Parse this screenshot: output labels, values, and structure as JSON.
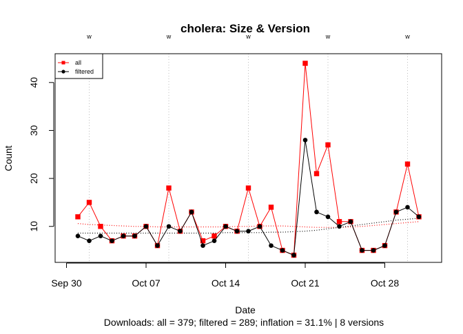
{
  "chart_data": {
    "type": "line",
    "title": "cholera: Size & Version",
    "xlabel": "Date",
    "ylabel": "Count",
    "footer": "Downloads: all = 379; filtered = 289; inflation = 31.1% | 8 versions",
    "x_start_date": "2020-09-30",
    "x_range": [
      "2020-09-29",
      "2020-11-02"
    ],
    "ylim": [
      2.5,
      46
    ],
    "x_ticks": [
      {
        "label": "Sep 30",
        "date": "2020-09-30"
      },
      {
        "label": "Oct 07",
        "date": "2020-10-07"
      },
      {
        "label": "Oct 14",
        "date": "2020-10-14"
      },
      {
        "label": "Oct 21",
        "date": "2020-10-21"
      },
      {
        "label": "Oct 28",
        "date": "2020-10-28"
      }
    ],
    "y_ticks": [
      10,
      20,
      30,
      40
    ],
    "version_marks": {
      "label": "w",
      "dates": [
        "2020-10-02",
        "2020-10-09",
        "2020-10-16",
        "2020-10-23",
        "2020-10-30"
      ]
    },
    "x": [
      "2020-10-01",
      "2020-10-02",
      "2020-10-03",
      "2020-10-04",
      "2020-10-05",
      "2020-10-06",
      "2020-10-07",
      "2020-10-08",
      "2020-10-09",
      "2020-10-10",
      "2020-10-11",
      "2020-10-12",
      "2020-10-13",
      "2020-10-14",
      "2020-10-15",
      "2020-10-16",
      "2020-10-17",
      "2020-10-18",
      "2020-10-19",
      "2020-10-20",
      "2020-10-21",
      "2020-10-22",
      "2020-10-23",
      "2020-10-24",
      "2020-10-25",
      "2020-10-26",
      "2020-10-27",
      "2020-10-28",
      "2020-10-29",
      "2020-10-30",
      "2020-10-31"
    ],
    "series": [
      {
        "name": "all",
        "color": "#ff0000",
        "marker": "square",
        "values": [
          12,
          15,
          10,
          7,
          8,
          8,
          10,
          6,
          18,
          9,
          13,
          7,
          8,
          10,
          9,
          18,
          10,
          14,
          5,
          4,
          44,
          21,
          27,
          11,
          11,
          5,
          5,
          6,
          13,
          23,
          12
        ],
        "trend": [
          10.6,
          10.4,
          10.3,
          10.2,
          10.1,
          10.0,
          10.0,
          9.9,
          9.9,
          9.9,
          9.9,
          9.9,
          9.9,
          9.9,
          10.0,
          10.0,
          10.1,
          10.1,
          10.1,
          10.0,
          9.9,
          9.8,
          9.8,
          9.8,
          9.9,
          10.0,
          10.2,
          10.4,
          10.6,
          10.8,
          11.0
        ]
      },
      {
        "name": "filtered",
        "color": "#000000",
        "marker": "circle",
        "values": [
          8,
          7,
          8,
          7,
          8,
          8,
          10,
          6,
          10,
          9,
          13,
          6,
          7,
          10,
          9,
          9,
          10,
          6,
          5,
          4,
          28,
          13,
          12,
          10,
          11,
          5,
          5,
          6,
          13,
          14,
          12
        ],
        "trend": [
          8.6,
          8.6,
          8.6,
          8.6,
          8.6,
          8.6,
          8.6,
          8.6,
          8.6,
          8.6,
          8.6,
          8.6,
          8.6,
          8.7,
          8.7,
          8.7,
          8.7,
          8.8,
          8.8,
          8.9,
          9.0,
          9.2,
          9.5,
          9.8,
          10.1,
          10.4,
          10.7,
          11.0,
          11.3,
          11.5,
          11.7
        ]
      }
    ],
    "legend": {
      "position": "top-left"
    },
    "grid": false
  }
}
